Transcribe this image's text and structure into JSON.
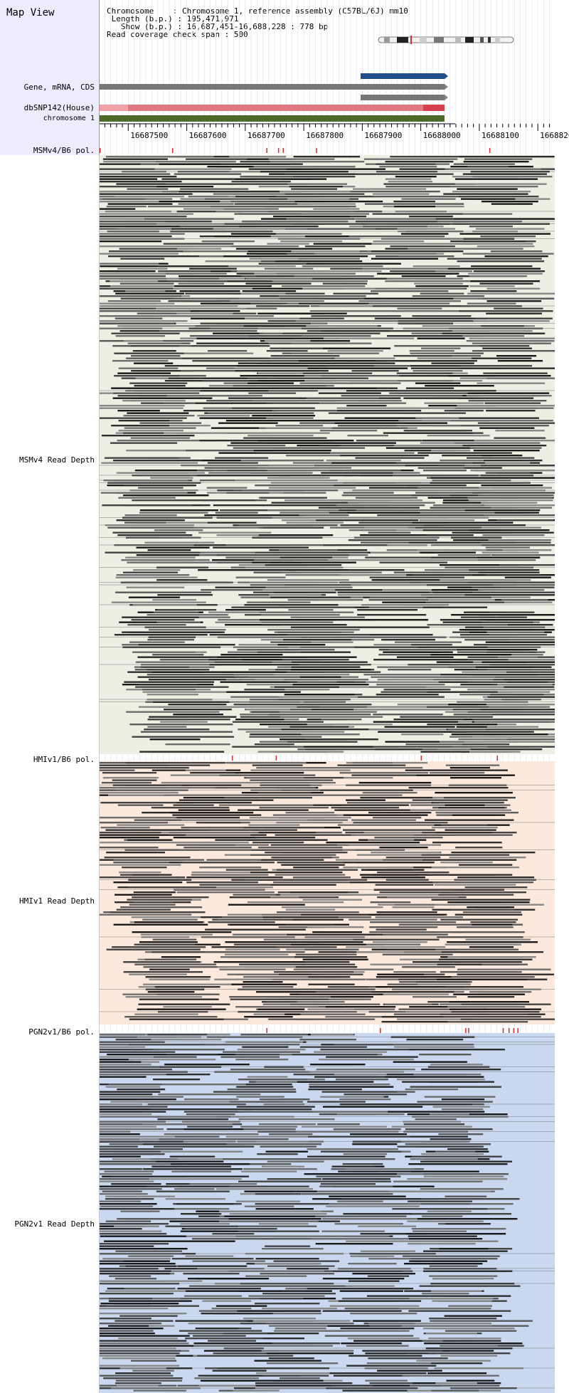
{
  "app": {
    "title": "Map View"
  },
  "info": {
    "chromosome_key": "Chromosome",
    "chromosome_val": ": Chromosome 1, reference assembly (C57BL/6J) mm10",
    "length_key": " Length (b.p.)",
    "length_val": ": 195,471,971",
    "show_key": "   Show (b.p.)",
    "show_val": ": 16,687,451-16,688,228 : 778 bp",
    "coverage": "Read coverage check span : 500"
  },
  "tracks": {
    "gene": "Gene, mRNA, CDS",
    "dbsnp": "dbSNP142(House)",
    "chromosome": "chromosome 1",
    "msm_pol": "MSMv4/B6 pol.",
    "msm_depth": "MSMv4 Read Depth",
    "hmi_pol": "HMIv1/B6 pol.",
    "hmi_depth": "HMIv1 Read Depth",
    "pgn_pol": "PGN2v1/B6 pol.",
    "pgn_depth": "PGN2v1 Read Depth"
  },
  "axis": {
    "ticks": [
      "16687500",
      "16687600",
      "16687700",
      "16687800",
      "16687900",
      "16688000",
      "16688100",
      "1668820"
    ]
  },
  "colors": {
    "msm_bg": "#ecefe2",
    "hmi_bg": "#fde8dc",
    "pgn_bg": "#c9d8ee",
    "gene_blue": "#1f4f8a",
    "gene_gray": "#777777",
    "snp_red": "#e05a64",
    "chrom_green": "#4d6a2a",
    "pol_tick": "#d03030"
  },
  "polymorphisms": {
    "msm": [
      16687451,
      16687575,
      16687736,
      16687756,
      16687764,
      16687821,
      16688117
    ],
    "hmi": [
      16687677,
      16687752,
      16688000,
      16688130
    ],
    "pgn": [
      16687736,
      16687930,
      16688076,
      16688081,
      16688140,
      16688150,
      16688158,
      16688165
    ]
  }
}
